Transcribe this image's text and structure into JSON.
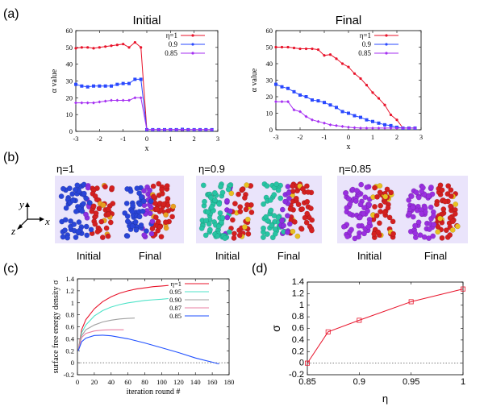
{
  "panel_labels": {
    "a": "(a)",
    "b": "(b)",
    "c": "(c)",
    "d": "(d)"
  },
  "colors": {
    "eta1": "#e8132a",
    "eta09": "#2a49ff",
    "eta085": "#a52ff2",
    "c095": "#4fe3c8",
    "c090": "#a0a0a0",
    "c087": "#e87fa3",
    "c085": "#2050ff",
    "bg": "#eae4fb"
  },
  "panel_b": {
    "groups": [
      {
        "eta_label": "η=1",
        "initial": "Initial",
        "final": "Final",
        "left_color": "#2a45d8",
        "mid_color": "#8c2fe0",
        "right_color": "#d42020",
        "accent_color": "#e8a020"
      },
      {
        "eta_label": "η=0.9",
        "initial": "Initial",
        "final": "Final",
        "left_color": "#27c4a3",
        "mid_color": "#8c2fe0",
        "right_color": "#d42020",
        "accent_color": "#e8c020"
      },
      {
        "eta_label": "η=0.85",
        "initial": "Initial",
        "final": "Final",
        "left_color": "#9a2fe0",
        "mid_color": "#9a2fe0",
        "right_color": "#d42020",
        "accent_color": "#e8c020"
      }
    ],
    "axes": {
      "y": "y",
      "x": "x",
      "z": "z"
    }
  },
  "chart_data": [
    {
      "type": "line",
      "panel": "a-initial",
      "title": "Initial",
      "xlabel": "x",
      "ylabel": "α value",
      "xlim": [
        -3,
        3
      ],
      "ylim": [
        0,
        60
      ],
      "xticks": [
        -3,
        -2,
        -1,
        0,
        1,
        2,
        3
      ],
      "yticks": [
        0,
        10,
        20,
        30,
        40,
        50,
        60
      ],
      "series": [
        {
          "name": "η=1",
          "color": "#e8132a",
          "x": [
            -3,
            -2.75,
            -2.5,
            -2.25,
            -2,
            -1.75,
            -1.5,
            -1.25,
            -1,
            -0.75,
            -0.5,
            -0.25,
            0,
            0.25,
            0.5,
            0.75,
            1,
            1.25,
            1.5,
            1.75,
            2,
            2.25,
            2.5,
            2.75
          ],
          "y": [
            49.5,
            50,
            50,
            49.5,
            50,
            50.5,
            51,
            51.5,
            52,
            50,
            53,
            50,
            1,
            1,
            1,
            1,
            1,
            1,
            1,
            1,
            1,
            1,
            1,
            1
          ]
        },
        {
          "name": "0.9",
          "color": "#2a49ff",
          "x": [
            -3,
            -2.75,
            -2.5,
            -2.25,
            -2,
            -1.75,
            -1.5,
            -1.25,
            -1,
            -0.75,
            -0.5,
            -0.25,
            0,
            0.25,
            0.5,
            0.75,
            1,
            1.25,
            1.5,
            1.75,
            2,
            2.25,
            2.5,
            2.75
          ],
          "y": [
            28,
            27,
            26.5,
            27,
            27,
            27,
            27,
            28,
            28.5,
            28.5,
            31,
            31,
            1,
            1,
            1,
            1,
            1,
            1,
            1.2,
            1,
            1,
            1,
            1,
            1
          ]
        },
        {
          "name": "0.85",
          "color": "#a52ff2",
          "x": [
            -3,
            -2.75,
            -2.5,
            -2.25,
            -2,
            -1.75,
            -1.5,
            -1.25,
            -1,
            -0.75,
            -0.5,
            -0.25,
            0,
            0.25,
            0.5,
            0.75,
            1,
            1.25,
            1.5,
            1.75,
            2,
            2.25,
            2.5,
            2.75
          ],
          "y": [
            17,
            17,
            17,
            17,
            17.5,
            18,
            18.5,
            18.5,
            18.5,
            18.5,
            20,
            20,
            1,
            1,
            1,
            1,
            1,
            1,
            1,
            1,
            1,
            1,
            1,
            1
          ]
        }
      ]
    },
    {
      "type": "line",
      "panel": "a-final",
      "title": "Final",
      "xlabel": "x",
      "ylabel": "α value",
      "xlim": [
        -3,
        3
      ],
      "ylim": [
        0,
        60
      ],
      "xticks": [
        -3,
        -2,
        -1,
        0,
        1,
        2,
        3
      ],
      "yticks": [
        0,
        10,
        20,
        30,
        40,
        50,
        60
      ],
      "series": [
        {
          "name": "η=1",
          "color": "#e8132a",
          "x": [
            -3,
            -2.75,
            -2.5,
            -2.25,
            -2,
            -1.75,
            -1.5,
            -1.25,
            -1,
            -0.75,
            -0.5,
            -0.25,
            0,
            0.25,
            0.5,
            0.75,
            1,
            1.25,
            1.5,
            1.75,
            2,
            2.25,
            2.5,
            2.75
          ],
          "y": [
            50,
            50,
            50,
            49.5,
            49,
            49,
            49,
            48.5,
            45,
            45.5,
            43,
            40,
            38,
            34,
            31,
            27,
            22.5,
            19,
            15,
            9,
            6,
            1,
            1,
            1
          ]
        },
        {
          "name": "0.9",
          "color": "#2a49ff",
          "x": [
            -3,
            -2.75,
            -2.5,
            -2.25,
            -2,
            -1.75,
            -1.5,
            -1.25,
            -1,
            -0.75,
            -0.5,
            -0.25,
            0,
            0.25,
            0.5,
            0.75,
            1,
            1.25,
            1.5,
            1.75,
            2,
            2.25,
            2.5,
            2.75
          ],
          "y": [
            27.5,
            26,
            25,
            23,
            21,
            20,
            18,
            17.5,
            16.5,
            15,
            13.5,
            11,
            10,
            8.5,
            7.5,
            6,
            5,
            4,
            3,
            2.5,
            1.5,
            1,
            1,
            1
          ]
        },
        {
          "name": "0.85",
          "color": "#a52ff2",
          "x": [
            -3,
            -2.75,
            -2.5,
            -2.25,
            -2,
            -1.75,
            -1.5,
            -1.25,
            -1,
            -0.75,
            -0.5,
            -0.25,
            0,
            0.25,
            0.5,
            0.75,
            1,
            1.25,
            1.5,
            1.75,
            2,
            2.25,
            2.5,
            2.75
          ],
          "y": [
            17,
            17,
            17,
            12,
            11,
            8,
            6,
            5,
            4,
            3,
            2.5,
            2,
            1.5,
            1.2,
            1,
            1,
            1,
            1,
            1,
            1,
            1,
            1,
            1,
            1
          ]
        }
      ]
    },
    {
      "type": "line",
      "panel": "c",
      "title": "",
      "xlabel": "iteration round #",
      "ylabel": "surface free energy density σ",
      "xlim": [
        0,
        180
      ],
      "ylim": [
        -0.2,
        1.4
      ],
      "xticks": [
        0,
        20,
        40,
        60,
        80,
        100,
        120,
        140,
        160,
        180
      ],
      "yticks": [
        -0.2,
        0,
        0.2,
        0.4,
        0.6,
        0.8,
        1,
        1.2,
        1.4
      ],
      "reference_line": 0,
      "series": [
        {
          "name": "η=1",
          "color": "#e8132a",
          "x": [
            1,
            5,
            10,
            20,
            30,
            40,
            50,
            60,
            70,
            80,
            90,
            100,
            108
          ],
          "y": [
            0.2,
            0.55,
            0.72,
            0.9,
            1.02,
            1.1,
            1.16,
            1.2,
            1.23,
            1.25,
            1.27,
            1.28,
            1.29
          ]
        },
        {
          "name": "0.95",
          "color": "#4fe3c8",
          "x": [
            1,
            5,
            10,
            20,
            30,
            40,
            50,
            60,
            70,
            80,
            90,
            100,
            108
          ],
          "y": [
            0.2,
            0.5,
            0.63,
            0.78,
            0.87,
            0.93,
            0.97,
            1.0,
            1.02,
            1.04,
            1.05,
            1.06,
            1.07
          ]
        },
        {
          "name": "0.90",
          "color": "#a0a0a0",
          "x": [
            1,
            5,
            10,
            20,
            30,
            40,
            50,
            60,
            68
          ],
          "y": [
            0.2,
            0.45,
            0.55,
            0.63,
            0.68,
            0.71,
            0.73,
            0.74,
            0.745
          ]
        },
        {
          "name": "0.87",
          "color": "#e87fa3",
          "x": [
            1,
            5,
            10,
            20,
            30,
            40,
            50,
            55
          ],
          "y": [
            0.2,
            0.42,
            0.49,
            0.53,
            0.545,
            0.55,
            0.55,
            0.55
          ]
        },
        {
          "name": "0.85",
          "color": "#2050ff",
          "x": [
            1,
            5,
            10,
            20,
            30,
            40,
            60,
            80,
            100,
            120,
            140,
            160,
            168
          ],
          "y": [
            0.2,
            0.35,
            0.41,
            0.455,
            0.46,
            0.45,
            0.4,
            0.33,
            0.25,
            0.17,
            0.08,
            0.01,
            -0.02
          ]
        }
      ]
    },
    {
      "type": "line",
      "panel": "d",
      "title": "",
      "xlabel": "η",
      "ylabel": "σ",
      "xlim": [
        0.85,
        1
      ],
      "ylim": [
        -0.2,
        1.4
      ],
      "xticks": [
        0.85,
        0.9,
        0.95,
        1
      ],
      "yticks": [
        -0.2,
        0,
        0.2,
        0.4,
        0.6,
        0.8,
        1,
        1.2,
        1.4
      ],
      "reference_line": 0,
      "series": [
        {
          "name": "σ(η)",
          "color": "#e8132a",
          "x": [
            0.85,
            0.87,
            0.9,
            0.95,
            1
          ],
          "y": [
            0.0,
            0.54,
            0.74,
            1.06,
            1.28
          ]
        }
      ]
    }
  ]
}
